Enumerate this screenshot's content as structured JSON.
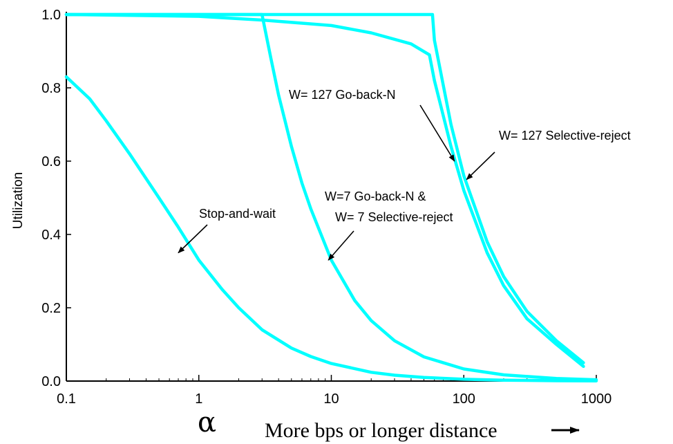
{
  "chart_data": {
    "type": "line",
    "xscale": "log",
    "xlim": [
      0.1,
      1000
    ],
    "ylim": [
      0,
      1
    ],
    "x_ticks": [
      "0.1",
      "1",
      "10",
      "100",
      "1000"
    ],
    "y_ticks": [
      "0.0",
      "0.2",
      "0.4",
      "0.6",
      "0.8",
      "1.0"
    ],
    "ylabel": "Utilization",
    "xlabel": "α",
    "xcaption": "More bps or longer distance",
    "grid": false,
    "line_color": "#00ffff",
    "series": [
      {
        "name": "Stop-and-wait",
        "x": [
          0.1,
          0.15,
          0.2,
          0.3,
          0.5,
          0.7,
          1,
          1.5,
          2,
          3,
          5,
          7,
          10,
          20,
          30,
          50,
          100,
          200,
          500,
          1000
        ],
        "y": [
          0.83,
          0.77,
          0.71,
          0.62,
          0.5,
          0.42,
          0.33,
          0.25,
          0.2,
          0.14,
          0.09,
          0.067,
          0.048,
          0.024,
          0.016,
          0.01,
          0.005,
          0.0025,
          0.001,
          0.0005
        ]
      },
      {
        "name": "W=7 Go-back-N & W= 7 Selective-reject",
        "x": [
          0.1,
          3,
          3.5,
          4,
          5,
          6,
          7,
          10,
          15,
          20,
          30,
          50,
          100,
          200,
          500,
          1000
        ],
        "y": [
          1.0,
          1.0,
          0.88,
          0.78,
          0.64,
          0.54,
          0.47,
          0.33,
          0.22,
          0.165,
          0.11,
          0.066,
          0.033,
          0.017,
          0.007,
          0.0035
        ]
      },
      {
        "name": "W= 127 Go-back-N",
        "x": [
          0.1,
          1,
          3,
          10,
          20,
          40,
          55,
          60,
          80,
          100,
          150,
          200,
          300,
          500,
          800
        ],
        "y": [
          1.0,
          0.995,
          0.985,
          0.97,
          0.95,
          0.92,
          0.89,
          0.82,
          0.64,
          0.52,
          0.35,
          0.26,
          0.17,
          0.1,
          0.04
        ]
      },
      {
        "name": "W= 127 Selective-reject",
        "x": [
          0.1,
          58,
          60,
          80,
          100,
          150,
          200,
          300,
          500,
          800
        ],
        "y": [
          1.0,
          1.0,
          0.93,
          0.7,
          0.56,
          0.38,
          0.285,
          0.19,
          0.11,
          0.05
        ]
      }
    ],
    "annotations": [
      {
        "id": "stop-and-wait",
        "lines": [
          "Stop-and-wait"
        ],
        "arrow_to": [
          0.7,
          0.35
        ]
      },
      {
        "id": "w7",
        "lines": [
          "W=7 Go-back-N &",
          "W= 7 Selective-reject"
        ],
        "arrow_to": [
          9.5,
          0.33
        ]
      },
      {
        "id": "w127-gbn",
        "lines": [
          "W= 127 Go-back-N"
        ],
        "arrow_to": [
          85,
          0.6
        ]
      },
      {
        "id": "w127-sr",
        "lines": [
          "W= 127 Selective-reject"
        ],
        "arrow_to": [
          105,
          0.55
        ]
      }
    ]
  }
}
